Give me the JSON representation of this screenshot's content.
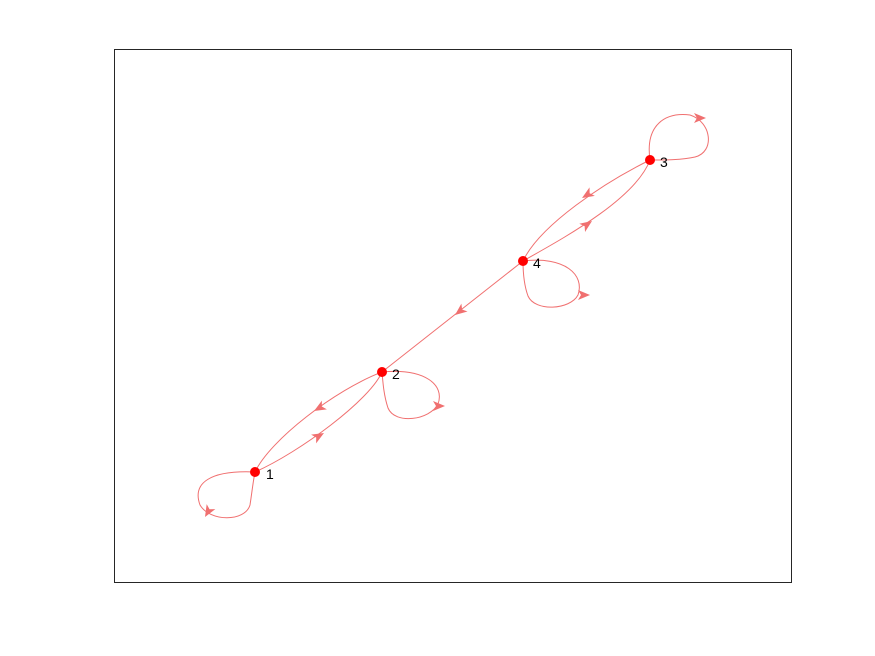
{
  "graph": {
    "type": "directed",
    "style": {
      "edge_color": "#f07070",
      "node_color": "#ff0000",
      "frame_color": "#262626",
      "background": "#ffffff"
    },
    "nodes": [
      {
        "id": "n1",
        "label": "1"
      },
      {
        "id": "n2",
        "label": "2"
      },
      {
        "id": "n3",
        "label": "3"
      },
      {
        "id": "n4",
        "label": "4"
      }
    ],
    "edges": [
      {
        "from": "1",
        "to": "1",
        "self_loop": true
      },
      {
        "from": "1",
        "to": "2"
      },
      {
        "from": "2",
        "to": "1"
      },
      {
        "from": "2",
        "to": "2",
        "self_loop": true
      },
      {
        "from": "4",
        "to": "2"
      },
      {
        "from": "4",
        "to": "3"
      },
      {
        "from": "3",
        "to": "4"
      },
      {
        "from": "3",
        "to": "3",
        "self_loop": true
      },
      {
        "from": "4",
        "to": "4",
        "self_loop": true
      }
    ]
  }
}
